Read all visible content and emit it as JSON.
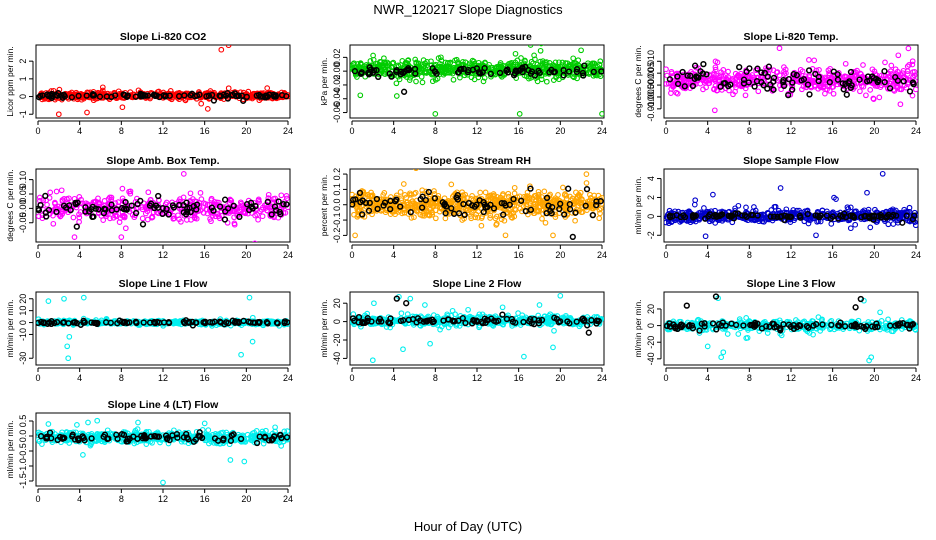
{
  "page": {
    "title": "NWR_120217  Slope Diagnostics",
    "xlabel": "Hour of Day (UTC)"
  },
  "chart_data": [
    {
      "type": "scatter",
      "title": "Slope Li-820 CO2",
      "ylabel": "Licor ppm per min.",
      "xlim": [
        0,
        24
      ],
      "ylim": [
        -1.1,
        2.8
      ],
      "x_ticks": [
        0,
        4,
        8,
        12,
        16,
        20,
        24
      ],
      "y_ticks": [
        -1,
        0,
        1,
        2
      ],
      "y_tick_labels": [
        "-1",
        "0",
        "1",
        "2"
      ],
      "series": [
        {
          "color": "#ff0000",
          "role": "all",
          "n": 520,
          "x_range": [
            0,
            24
          ],
          "y_center": 0.05,
          "y_spread": 0.18,
          "outliers": [
            [
              17.6,
              2.65
            ],
            [
              18.3,
              2.9
            ],
            [
              2.0,
              -1.0
            ],
            [
              4.7,
              -0.9
            ],
            [
              16.3,
              -0.7
            ],
            [
              8.1,
              -0.6
            ]
          ]
        },
        {
          "color": "#000000",
          "role": "selected",
          "n": 90,
          "x_range": [
            0,
            24
          ],
          "y_center": 0.05,
          "y_spread": 0.1,
          "outliers": []
        }
      ]
    },
    {
      "type": "scatter",
      "title": "Slope Li-820 Pressure",
      "ylabel": "kPa per min.",
      "xlim": [
        0,
        24
      ],
      "ylim": [
        -0.065,
        0.035
      ],
      "x_ticks": [
        0,
        4,
        8,
        12,
        16,
        20,
        24
      ],
      "y_ticks": [
        -0.06,
        -0.04,
        -0.02,
        0.0,
        0.02
      ],
      "y_tick_labels": [
        "-0.06",
        "-0.04",
        "-0.02",
        "0.00",
        "0.02"
      ],
      "series": [
        {
          "color": "#00cc00",
          "role": "all",
          "n": 640,
          "x_range": [
            0,
            24
          ],
          "y_center": 0.003,
          "y_spread": 0.011,
          "outliers": [
            [
              8.0,
              -0.062
            ],
            [
              16.1,
              -0.062
            ],
            [
              24.0,
              -0.062
            ],
            [
              0.8,
              -0.035
            ],
            [
              4.3,
              -0.036
            ]
          ]
        },
        {
          "color": "#000000",
          "role": "selected",
          "n": 80,
          "x_range": [
            0,
            24
          ],
          "y_center": 0.0,
          "y_spread": 0.006,
          "outliers": [
            [
              5.0,
              -0.03
            ]
          ]
        }
      ]
    },
    {
      "type": "scatter",
      "title": "Slope Li-820 Temp.",
      "ylabel": "degrees C per min.",
      "xlim": [
        0,
        24
      ],
      "ylim": [
        -0.013,
        0.016
      ],
      "x_ticks": [
        0,
        4,
        8,
        12,
        16,
        20,
        24
      ],
      "y_ticks": [
        -0.01,
        -0.005,
        0.0,
        0.005,
        0.01
      ],
      "y_tick_labels": [
        "-0.010",
        "-0.005",
        "0.000",
        "0.005",
        "0.010"
      ],
      "series": [
        {
          "color": "#ff00ff",
          "role": "all",
          "n": 520,
          "x_range": [
            0,
            24
          ],
          "y_center": 0.002,
          "y_spread": 0.0045,
          "outliers": [
            [
              10.9,
              0.0155
            ],
            [
              22.3,
              0.0125
            ]
          ]
        },
        {
          "color": "#000000",
          "role": "selected",
          "n": 90,
          "x_range": [
            0,
            24
          ],
          "y_center": 0.002,
          "y_spread": 0.0045,
          "outliers": []
        }
      ]
    },
    {
      "type": "scatter",
      "title": "Slope Amb. Box Temp.",
      "ylabel": "degrees C per min.",
      "xlim": [
        0,
        24
      ],
      "ylim": [
        -0.11,
        0.13
      ],
      "x_ticks": [
        0,
        4,
        8,
        12,
        16,
        20,
        24
      ],
      "y_ticks": [
        -0.05,
        0.0,
        0.05,
        0.1
      ],
      "y_tick_labels": [
        "-0.05",
        "0.00",
        "0.05",
        "0.10"
      ],
      "series": [
        {
          "color": "#ff00ff",
          "role": "all",
          "n": 420,
          "x_range": [
            0,
            24
          ],
          "y_center": 0.0,
          "y_spread": 0.04,
          "outliers": [
            [
              14.0,
              0.12
            ],
            [
              3.5,
              -0.1
            ],
            [
              8.0,
              -0.1
            ]
          ]
        },
        {
          "color": "#000000",
          "role": "selected",
          "n": 90,
          "x_range": [
            0,
            24
          ],
          "y_center": 0.0,
          "y_spread": 0.03,
          "outliers": []
        }
      ]
    },
    {
      "type": "scatter",
      "title": "Slope Gas Stream RH",
      "ylabel": "percent per min.",
      "xlim": [
        0,
        24
      ],
      "ylim": [
        -0.23,
        0.22
      ],
      "x_ticks": [
        0,
        4,
        8,
        12,
        16,
        20,
        24
      ],
      "y_ticks": [
        -0.2,
        -0.1,
        0.0,
        0.1,
        0.2
      ],
      "y_tick_labels": [
        "-0.2",
        "-0.1",
        "0.0",
        "0.1",
        "0.2"
      ],
      "series": [
        {
          "color": "#ffa500",
          "role": "all",
          "n": 700,
          "x_range": [
            0,
            24
          ],
          "y_center": 0.0,
          "y_spread": 0.07,
          "outliers": [
            [
              22.5,
              0.2
            ],
            [
              0.3,
              -0.2
            ],
            [
              19.3,
              -0.2
            ]
          ]
        },
        {
          "color": "#000000",
          "role": "selected",
          "n": 80,
          "x_range": [
            0,
            24
          ],
          "y_center": 0.0,
          "y_spread": 0.07,
          "outliers": [
            [
              21.2,
              -0.21
            ]
          ]
        }
      ]
    },
    {
      "type": "scatter",
      "title": "Slope Sample Flow",
      "ylabel": "ml/min per min.",
      "xlim": [
        0,
        24
      ],
      "ylim": [
        -2.5,
        4.8
      ],
      "x_ticks": [
        0,
        4,
        8,
        12,
        16,
        20,
        24
      ],
      "y_ticks": [
        -2,
        0,
        2,
        4
      ],
      "y_tick_labels": [
        "-2",
        "0",
        "2",
        "4"
      ],
      "series": [
        {
          "color": "#0000cc",
          "role": "all",
          "n": 560,
          "x_range": [
            0,
            24
          ],
          "y_center": 0.05,
          "y_spread": 0.6,
          "outliers": [
            [
              20.8,
              4.5
            ],
            [
              11.0,
              3.0
            ],
            [
              3.8,
              -2.1
            ],
            [
              14.4,
              -2.0
            ],
            [
              4.5,
              2.3
            ],
            [
              19.3,
              2.5
            ]
          ]
        },
        {
          "color": "#000000",
          "role": "selected",
          "n": 90,
          "x_range": [
            0,
            24
          ],
          "y_center": 0.0,
          "y_spread": 0.25,
          "outliers": []
        }
      ]
    },
    {
      "type": "scatter",
      "title": "Slope Line 1 Flow",
      "ylabel": "ml/min per min.",
      "xlim": [
        0,
        24
      ],
      "ylim": [
        -34,
        24
      ],
      "x_ticks": [
        0,
        4,
        8,
        12,
        16,
        20,
        24
      ],
      "y_ticks": [
        -30,
        -10,
        0,
        10,
        20
      ],
      "y_tick_labels": [
        "-30",
        "-10",
        "0",
        "10",
        "20"
      ],
      "series": [
        {
          "color": "#00eeee",
          "role": "all",
          "n": 460,
          "x_range": [
            0,
            24
          ],
          "y_center": 0.0,
          "y_spread": 1.5,
          "outliers": [
            [
              2.5,
              20
            ],
            [
              4.4,
              21
            ],
            [
              20.3,
              21
            ],
            [
              1.0,
              18
            ],
            [
              2.8,
              -20
            ],
            [
              2.9,
              -30
            ],
            [
              19.5,
              -27
            ],
            [
              20.6,
              -16
            ],
            [
              3.0,
              -12
            ]
          ]
        },
        {
          "color": "#000000",
          "role": "selected",
          "n": 90,
          "x_range": [
            0,
            24
          ],
          "y_center": 0.0,
          "y_spread": 0.8,
          "outliers": []
        }
      ]
    },
    {
      "type": "scatter",
      "title": "Slope Line 2 Flow",
      "ylabel": "ml/min per min.",
      "xlim": [
        0,
        24
      ],
      "ylim": [
        -45,
        30
      ],
      "x_ticks": [
        0,
        4,
        8,
        12,
        16,
        20,
        24
      ],
      "y_ticks": [
        -40,
        -20,
        0,
        20
      ],
      "y_tick_labels": [
        "-40",
        "-20",
        "0",
        "20"
      ],
      "series": [
        {
          "color": "#00eeee",
          "role": "all",
          "n": 480,
          "x_range": [
            0,
            24
          ],
          "y_center": 1.0,
          "y_spread": 5,
          "outliers": [
            [
              2.1,
              20
            ],
            [
              4.5,
              27
            ],
            [
              5.6,
              25
            ],
            [
              7.0,
              18
            ],
            [
              18.0,
              18
            ],
            [
              20.0,
              28
            ],
            [
              2.0,
              -42
            ],
            [
              4.9,
              -30
            ],
            [
              7.5,
              -24
            ],
            [
              16.5,
              -38
            ],
            [
              19.3,
              -28
            ]
          ]
        },
        {
          "color": "#000000",
          "role": "selected",
          "n": 90,
          "x_range": [
            0,
            24
          ],
          "y_center": 1.0,
          "y_spread": 3,
          "outliers": [
            [
              4.3,
              25
            ],
            [
              5.2,
              20
            ]
          ]
        }
      ]
    },
    {
      "type": "scatter",
      "title": "Slope Line 3 Flow",
      "ylabel": "ml/min per min.",
      "xlim": [
        0,
        24
      ],
      "ylim": [
        -45,
        38
      ],
      "x_ticks": [
        0,
        4,
        8,
        12,
        16,
        20,
        24
      ],
      "y_ticks": [
        -40,
        -20,
        0,
        20
      ],
      "y_tick_labels": [
        "-40",
        "-20",
        "0",
        "20"
      ],
      "series": [
        {
          "color": "#00eeee",
          "role": "all",
          "n": 480,
          "x_range": [
            0,
            24
          ],
          "y_center": 0.0,
          "y_spread": 5,
          "outliers": [
            [
              5.0,
              33
            ],
            [
              19.0,
              30
            ],
            [
              5.3,
              -38
            ],
            [
              5.5,
              -32
            ],
            [
              19.5,
              -42
            ],
            [
              19.7,
              -38
            ],
            [
              4.0,
              -25
            ],
            [
              7.7,
              -15
            ]
          ]
        },
        {
          "color": "#000000",
          "role": "selected",
          "n": 90,
          "x_range": [
            0,
            24
          ],
          "y_center": 0.0,
          "y_spread": 3,
          "outliers": [
            [
              2.0,
              24
            ],
            [
              4.8,
              35
            ],
            [
              18.2,
              22
            ],
            [
              18.7,
              32
            ]
          ]
        }
      ]
    },
    {
      "type": "scatter",
      "title": "Slope Line 4 (LT) Flow",
      "ylabel": "ml/min per min.",
      "xlim": [
        0,
        24
      ],
      "ylim": [
        -1.6,
        0.7
      ],
      "x_ticks": [
        0,
        4,
        8,
        12,
        16,
        20,
        24
      ],
      "y_ticks": [
        -1.5,
        -1.0,
        -0.5,
        0.0,
        0.5
      ],
      "y_tick_labels": [
        "-1.5",
        "-1.0",
        "-0.5",
        "0.0",
        "0.5"
      ],
      "series": [
        {
          "color": "#00eeee",
          "role": "all",
          "n": 560,
          "x_range": [
            0,
            24
          ],
          "y_center": -0.05,
          "y_spread": 0.17,
          "outliers": [
            [
              12.0,
              -1.55
            ],
            [
              19.8,
              -0.85
            ],
            [
              1.0,
              0.4
            ],
            [
              4.8,
              0.45
            ],
            [
              9.6,
              0.45
            ],
            [
              16.0,
              0.42
            ]
          ]
        },
        {
          "color": "#000000",
          "role": "selected",
          "n": 90,
          "x_range": [
            0,
            24
          ],
          "y_center": -0.05,
          "y_spread": 0.13,
          "outliers": []
        }
      ]
    }
  ]
}
